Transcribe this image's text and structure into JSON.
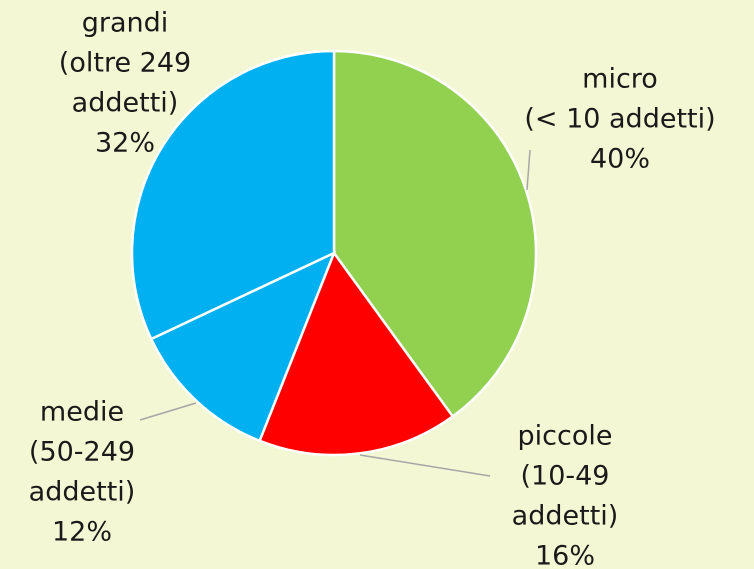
{
  "chart_data": {
    "type": "pie",
    "categories": [
      [
        "micro",
        "(< 10 addetti)"
      ],
      [
        "piccole",
        "(10-49",
        "addetti)"
      ],
      [
        "medie",
        "(50-249",
        "addetti)"
      ],
      [
        "grandi",
        "(oltre 249",
        "addetti)"
      ]
    ],
    "values": [
      40,
      16,
      12,
      32
    ],
    "value_labels": [
      "40%",
      "16%",
      "12%",
      "32%"
    ],
    "colors": [
      "#92d050",
      "#ff0000",
      "#00b0f0",
      "#00b0f0"
    ]
  }
}
